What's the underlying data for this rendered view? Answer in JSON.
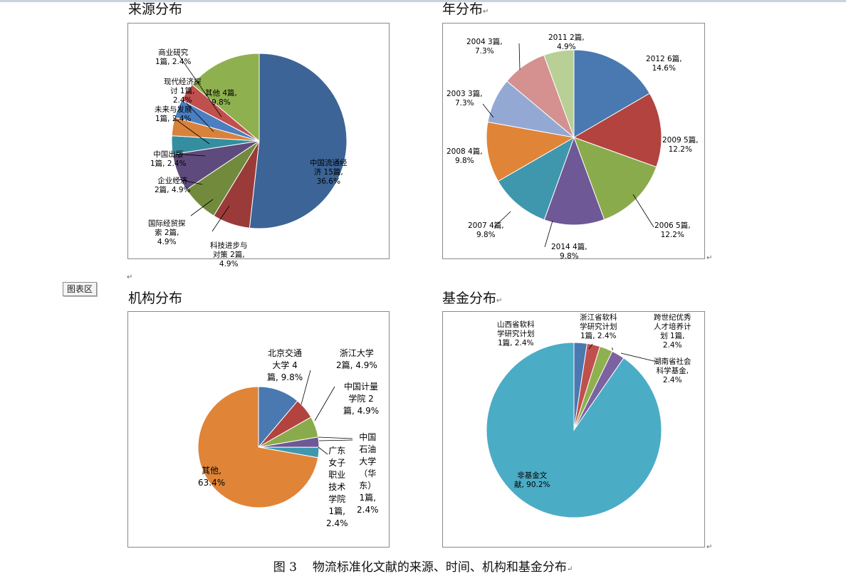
{
  "headings": {
    "source": "来源分布",
    "year": "年分布",
    "inst": "机构分布",
    "fund": "基金分布",
    "mark": "↵"
  },
  "chart_area_tag": "图表区",
  "caption": {
    "num": "图 3",
    "text": "物流标准化文献的来源、时间、机构和基金分布",
    "mark": "↵"
  },
  "chart_data": [
    {
      "type": "pie",
      "title": "来源分布",
      "slices": [
        {
          "label": "中国流通经济",
          "count": 15,
          "value": 36.6,
          "color": "#3c6496"
        },
        {
          "label": "科技进步与对策",
          "count": 2,
          "value": 4.9,
          "color": "#9a3b3a"
        },
        {
          "label": "国际经贸探索",
          "count": 2,
          "value": 4.9,
          "color": "#718a3c"
        },
        {
          "label": "企业经济",
          "count": 2,
          "value": 4.9,
          "color": "#5e4a7c"
        },
        {
          "label": "中国出版",
          "count": 1,
          "value": 2.4,
          "color": "#358ea0"
        },
        {
          "label": "未来与发展",
          "count": 1,
          "value": 2.4,
          "color": "#d9823b"
        },
        {
          "label": "现代经济探讨",
          "count": 1,
          "value": 2.4,
          "color": "#4a7fc1"
        },
        {
          "label": "商业研究",
          "count": 1,
          "value": 2.4,
          "color": "#c0504d"
        },
        {
          "label": "其他",
          "count": 4,
          "value": 9.8,
          "color": "#8fb04f"
        }
      ],
      "labels": [
        {
          "lines": [
            "中国流通经",
            "济  15篇,",
            "36.6%"
          ]
        },
        {
          "lines": [
            "科技进步与",
            "对策  2篇,",
            "4.9%"
          ]
        },
        {
          "lines": [
            "国际经贸探",
            "索  2篇,",
            "4.9%"
          ]
        },
        {
          "lines": [
            "企业经济",
            "2篇, 4.9%"
          ]
        },
        {
          "lines": [
            "中国出版",
            "1篇, 2.4%"
          ]
        },
        {
          "lines": [
            "未来与发展",
            "1篇, 2.4%"
          ]
        },
        {
          "lines": [
            "现代经济探",
            "讨  1篇,",
            "2.4%"
          ]
        },
        {
          "lines": [
            "商业研究",
            "1篇, 2.4%"
          ]
        },
        {
          "lines": [
            "其他  4篇,",
            "9.8%"
          ]
        }
      ]
    },
    {
      "type": "pie",
      "title": "年分布",
      "slices": [
        {
          "label": "2012",
          "count": 6,
          "value": 14.6,
          "color": "#4a78b0"
        },
        {
          "label": "2009",
          "count": 5,
          "value": 12.2,
          "color": "#b3433f"
        },
        {
          "label": "2006",
          "count": 5,
          "value": 12.2,
          "color": "#8aab4c"
        },
        {
          "label": "2014",
          "count": 4,
          "value": 9.8,
          "color": "#6e5895"
        },
        {
          "label": "2007",
          "count": 4,
          "value": 9.8,
          "color": "#3f97ad"
        },
        {
          "label": "2008",
          "count": 4,
          "value": 9.8,
          "color": "#e08438"
        },
        {
          "label": "2003",
          "count": 3,
          "value": 7.3,
          "color": "#93a9d3"
        },
        {
          "label": "2004",
          "count": 3,
          "value": 7.3,
          "color": "#d49190"
        },
        {
          "label": "2011",
          "count": 2,
          "value": 4.9,
          "color": "#b8d096"
        }
      ],
      "labels": [
        {
          "lines": [
            "2012   6篇,",
            "14.6%"
          ]
        },
        {
          "lines": [
            "2009   5篇,",
            "12.2%"
          ]
        },
        {
          "lines": [
            "2006   5篇,",
            "12.2%"
          ]
        },
        {
          "lines": [
            "2014   4篇,",
            "9.8%"
          ]
        },
        {
          "lines": [
            "2007   4篇,",
            "9.8%"
          ]
        },
        {
          "lines": [
            "2008   4篇,",
            "9.8%"
          ]
        },
        {
          "lines": [
            "2003   3篇,",
            "7.3%"
          ]
        },
        {
          "lines": [
            "2004   3篇,",
            "7.3%"
          ]
        },
        {
          "lines": [
            "2011   2篇,",
            "4.9%"
          ]
        }
      ]
    },
    {
      "type": "pie",
      "title": "机构分布",
      "slices": [
        {
          "label": "北京交通大学",
          "count": 4,
          "value": 9.8,
          "color": "#4a78b0"
        },
        {
          "label": "浙江大学",
          "count": 2,
          "value": 4.9,
          "color": "#b3433f"
        },
        {
          "label": "中国计量学院",
          "count": 2,
          "value": 4.9,
          "color": "#8aab4c"
        },
        {
          "label": "中国石油大学（华东）",
          "count": 1,
          "value": 2.4,
          "color": "#6e5895"
        },
        {
          "label": "广东女子职业技术学院",
          "count": 1,
          "value": 2.4,
          "color": "#3f97ad"
        },
        {
          "label": "其他",
          "count": 26,
          "value": 63.4,
          "color": "#e08438"
        }
      ],
      "labels": [
        {
          "lines": [
            "北京交通",
            "大学   4",
            "篇, 9.8%"
          ]
        },
        {
          "lines": [
            "浙江大学",
            "2篇, 4.9%"
          ]
        },
        {
          "lines": [
            "中国计量",
            "学院   2",
            "篇, 4.9%"
          ]
        },
        {
          "lines": [
            "中国",
            "石油",
            "大学",
            "（华",
            "东）",
            "1篇,",
            "2.4%"
          ]
        },
        {
          "lines": [
            "广东",
            "女子",
            "职业",
            "技术",
            "学院",
            "1篇,",
            "2.4%"
          ]
        },
        {
          "lines": [
            "其他,",
            "63.4%"
          ]
        }
      ]
    },
    {
      "type": "pie",
      "title": "基金分布",
      "slices": [
        {
          "label": "山西省软科学研究计划",
          "count": 1,
          "value": 2.4,
          "color": "#4a78b0"
        },
        {
          "label": "浙江省软科学研究计划",
          "count": 1,
          "value": 2.4,
          "color": "#c0504d"
        },
        {
          "label": "跨世纪优秀人才培养计划",
          "count": 1,
          "value": 2.4,
          "color": "#8fb04f"
        },
        {
          "label": "湖南省社会科学基金",
          "count": 1,
          "value": 2.4,
          "color": "#7b62a0"
        },
        {
          "label": "非基金文献",
          "count": 37,
          "value": 90.2,
          "color": "#4bacc6"
        }
      ],
      "labels": [
        {
          "lines": [
            "山西省软科",
            "学研究计划",
            "1篇, 2.4%"
          ]
        },
        {
          "lines": [
            "浙江省软科",
            "学研究计划",
            "1篇, 2.4%"
          ]
        },
        {
          "lines": [
            "跨世纪优秀",
            "人才培养计",
            "划  1篇,",
            "2.4%"
          ]
        },
        {
          "lines": [
            "湖南省社会",
            "科学基金,",
            "2.4%"
          ]
        },
        {
          "lines": [
            "非基金文",
            "献, 90.2%"
          ]
        }
      ]
    }
  ]
}
